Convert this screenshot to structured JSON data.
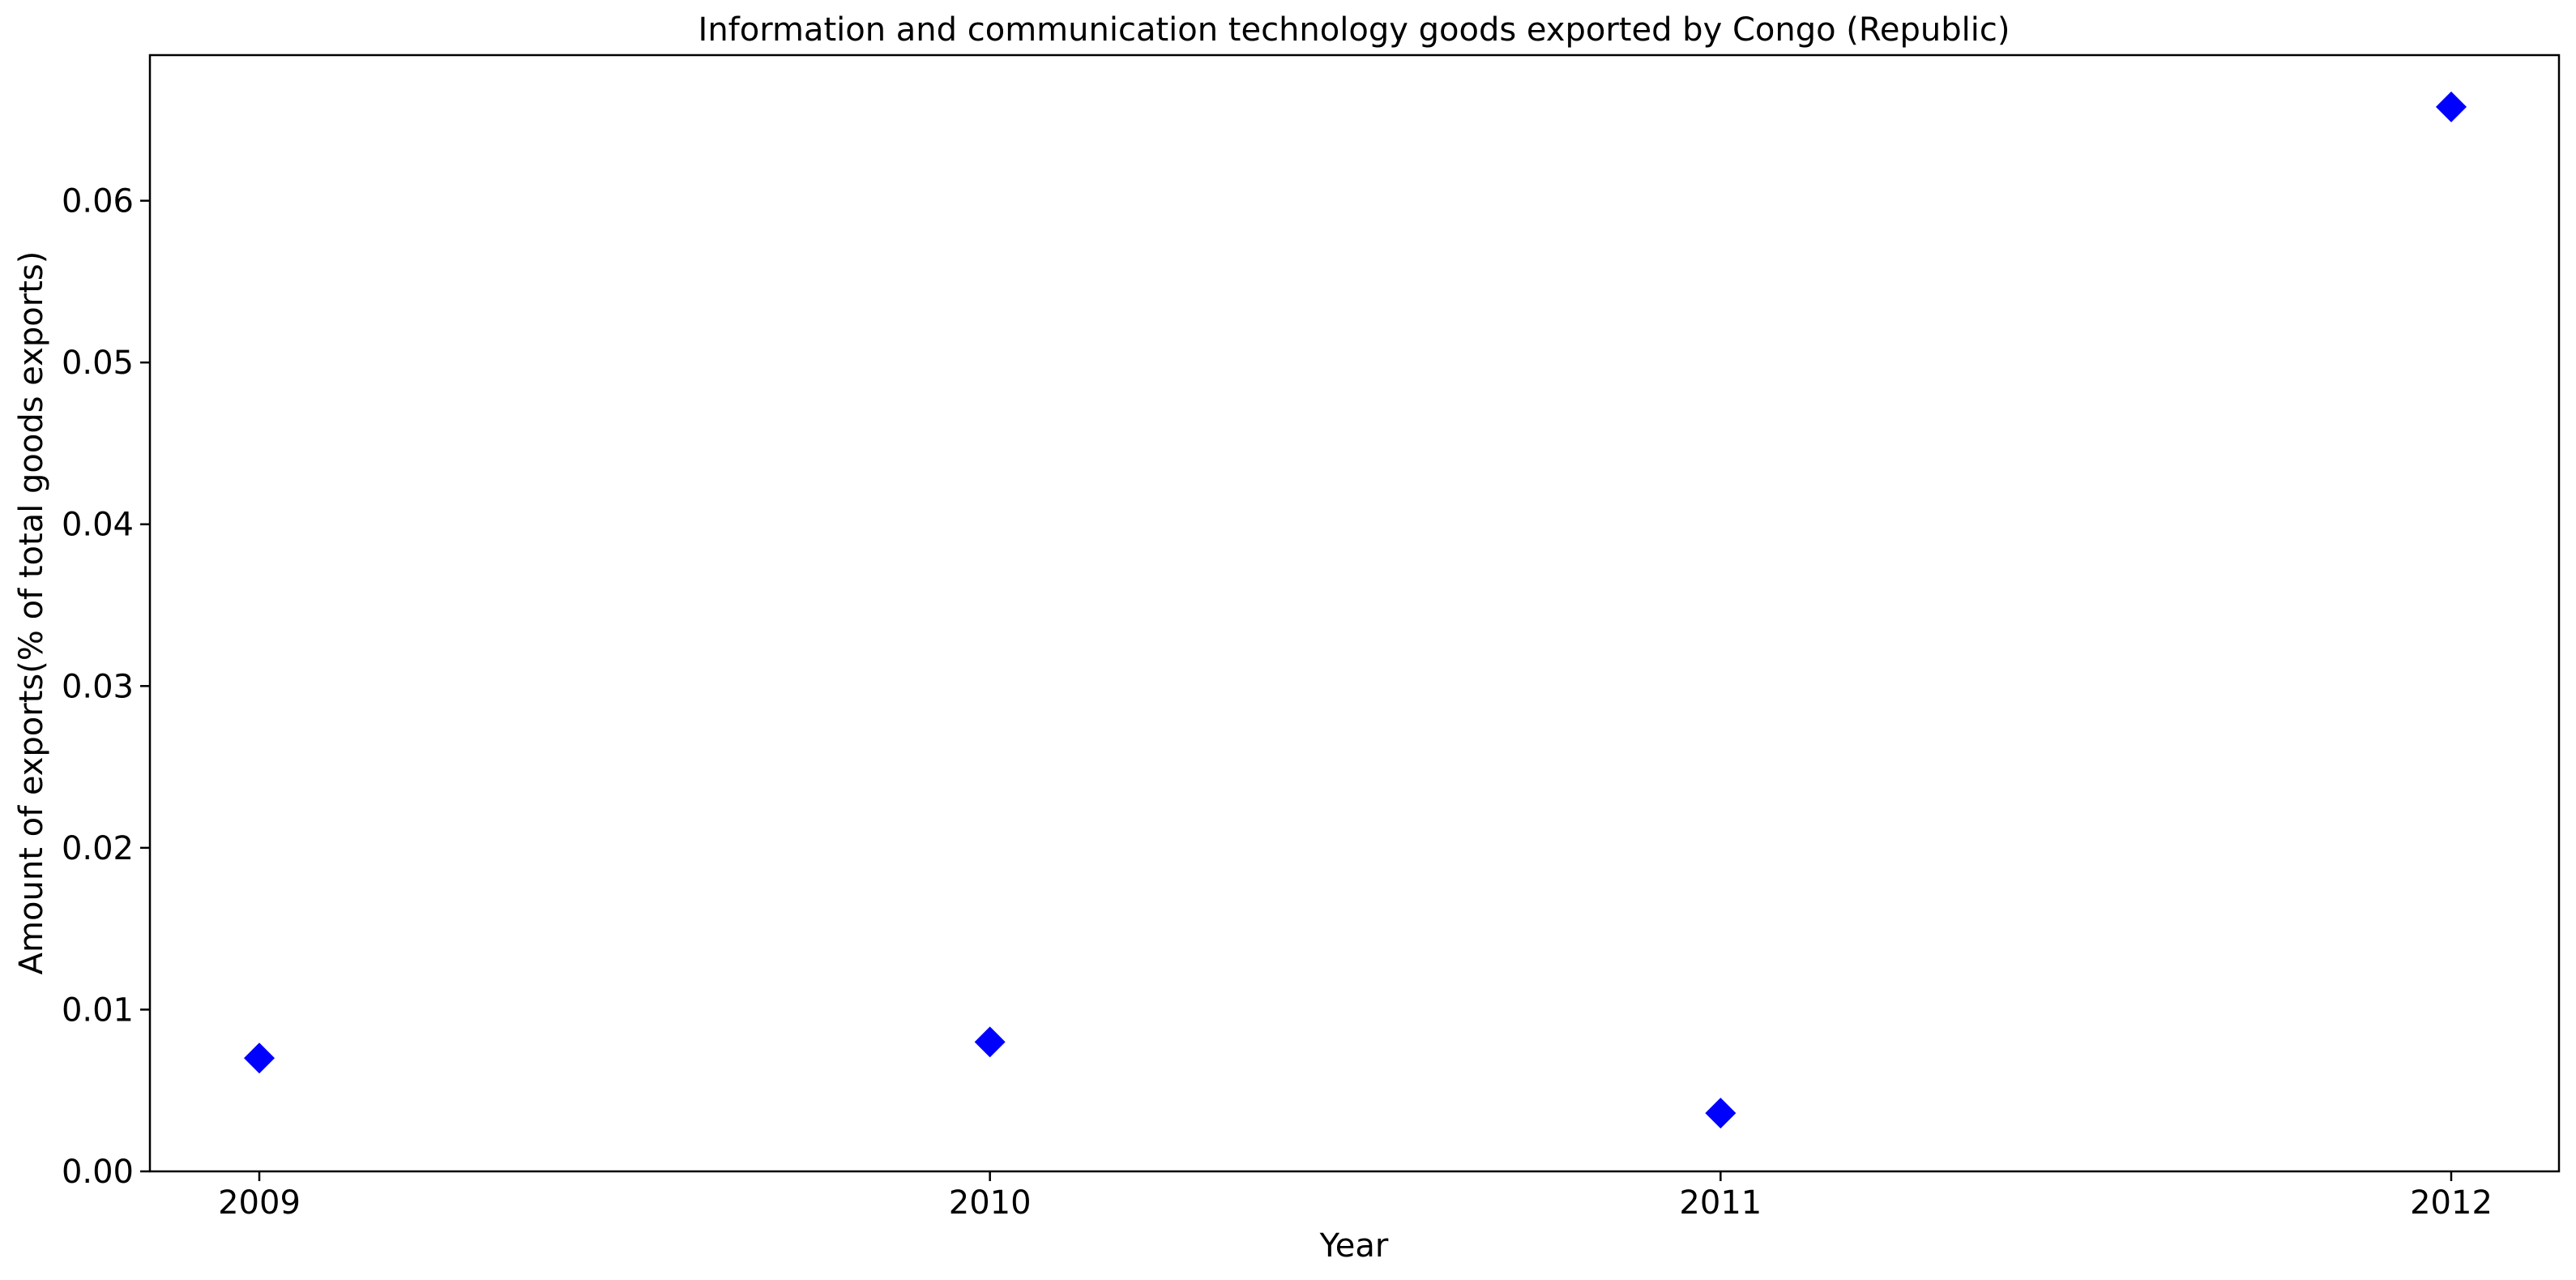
{
  "chart_data": {
    "type": "scatter",
    "title": "Information and communication technology goods exported by Congo (Republic)",
    "xlabel": "Year",
    "ylabel": "Amount of exports(% of total goods exports)",
    "x": [
      "2009",
      "2010",
      "2011",
      "2012"
    ],
    "values": [
      0.007,
      0.008,
      0.0036,
      0.0658
    ],
    "ylim": [
      0,
      0.069
    ],
    "yticks": [
      0.0,
      0.01,
      0.02,
      0.03,
      0.04,
      0.05,
      0.06
    ],
    "ytick_labels": [
      "0.00",
      "0.01",
      "0.02",
      "0.03",
      "0.04",
      "0.05",
      "0.06"
    ],
    "marker": "diamond",
    "marker_color": "#0000ff",
    "grid": false,
    "legend": "none"
  }
}
